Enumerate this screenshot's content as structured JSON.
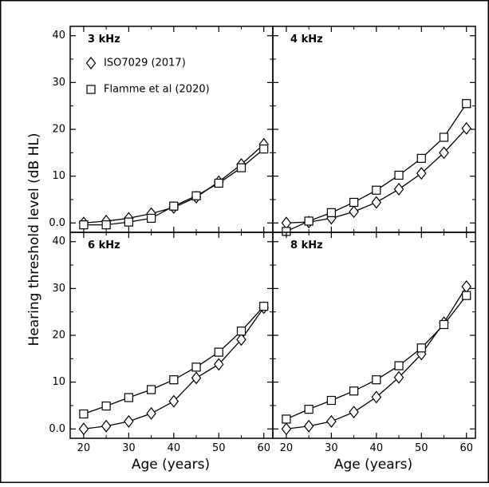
{
  "chart_data": {
    "type": "line",
    "xlabel": "Age (years)",
    "ylabel": "Hearing threshold level (dB HL)",
    "ylim": [
      -2,
      42
    ],
    "xlim": [
      17,
      62
    ],
    "yticks": [
      0,
      10,
      20,
      30,
      40
    ],
    "ytick_labels": [
      "0.0",
      "10",
      "20",
      "30",
      "40"
    ],
    "xticks": [
      20,
      30,
      40,
      50,
      60
    ],
    "xtick_labels": [
      "20",
      "30",
      "40",
      "50",
      "60"
    ],
    "legend": [
      {
        "label": "ISO7029 (2017)",
        "marker": "diamond"
      },
      {
        "label": "Flamme et al (2020)",
        "marker": "square"
      }
    ],
    "x": [
      20,
      25,
      30,
      35,
      40,
      45,
      50,
      55,
      60
    ],
    "panels": [
      {
        "title": "3 kHz",
        "series": [
          {
            "name": "ISO7029 (2017)",
            "marker": "diamond",
            "values": [
              0,
              0.4,
              1.0,
              2.0,
              3.3,
              5.5,
              8.8,
              12.5,
              16.8
            ]
          },
          {
            "name": "Flamme et al (2020)",
            "marker": "square",
            "values": [
              -0.4,
              -0.4,
              0.2,
              1.0,
              3.6,
              5.8,
              8.5,
              11.8,
              15.8
            ]
          }
        ]
      },
      {
        "title": "4 kHz",
        "series": [
          {
            "name": "ISO7029 (2017)",
            "marker": "diamond",
            "values": [
              0,
              0.2,
              1.0,
              2.4,
              4.4,
              7.2,
              10.6,
              15.0,
              20.2
            ]
          },
          {
            "name": "Flamme et al (2020)",
            "marker": "square",
            "values": [
              -1.8,
              0.4,
              2.2,
              4.4,
              7.0,
              10.2,
              13.8,
              18.3,
              25.5
            ]
          }
        ]
      },
      {
        "title": "6 kHz",
        "series": [
          {
            "name": "ISO7029 (2017)",
            "marker": "diamond",
            "values": [
              0,
              0.6,
              1.6,
              3.3,
              5.9,
              10.9,
              13.8,
              19.1,
              25.9
            ]
          },
          {
            "name": "Flamme et al (2020)",
            "marker": "square",
            "values": [
              3.2,
              4.9,
              6.7,
              8.4,
              10.5,
              13.2,
              16.4,
              20.9,
              26.2
            ]
          }
        ]
      },
      {
        "title": "8 kHz",
        "series": [
          {
            "name": "ISO7029 (2017)",
            "marker": "diamond",
            "values": [
              0,
              0.6,
              1.6,
              3.6,
              6.8,
              11.0,
              16.0,
              22.7,
              30.4
            ]
          },
          {
            "name": "Flamme et al (2020)",
            "marker": "square",
            "values": [
              2.1,
              4.2,
              6.1,
              8.1,
              10.5,
              13.5,
              17.3,
              22.3,
              28.5
            ]
          }
        ]
      }
    ]
  }
}
